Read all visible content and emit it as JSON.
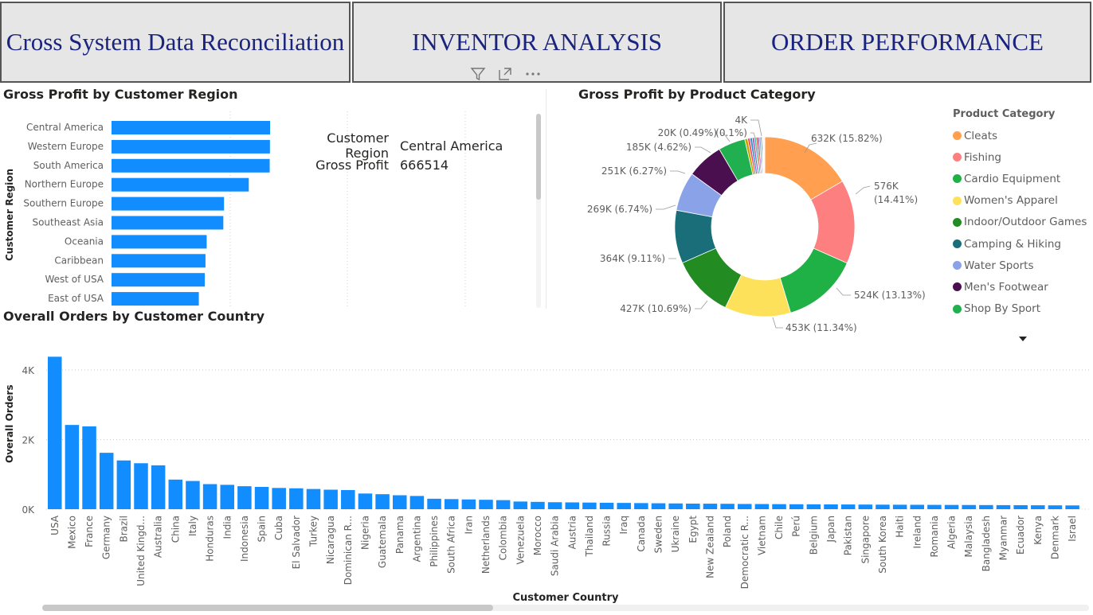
{
  "nav": {
    "btn1": "Cross System Data Reconciliation",
    "btn2": "INVENTOR ANALYSIS",
    "btn3": "ORDER PERFORMANCE"
  },
  "icons": [
    "filter-icon",
    "focus-mode-icon",
    "more-options-icon"
  ],
  "region_chart": {
    "title": "Gross Profit by Customer Region",
    "ylabel": "Customer Region",
    "tooltip": {
      "k1": "Customer Region",
      "v1": "Central America",
      "k2": "Gross Profit",
      "v2": "666514"
    }
  },
  "pie_chart": {
    "title": "Gross Profit by Product Category",
    "legend_title": "Product Category"
  },
  "country_chart": {
    "title": "Overall Orders by Customer Country",
    "xlabel": "Customer Country",
    "ylabel": "Overall Orders"
  },
  "chart_data": [
    {
      "type": "bar",
      "orientation": "horizontal",
      "title": "Gross Profit by Customer Region",
      "ylabel": "Customer Region",
      "categories": [
        "Central America",
        "Western Europe",
        "South America",
        "Northern Europe",
        "Southern Europe",
        "Southeast Asia",
        "Oceania",
        "Caribbean",
        "West of USA",
        "East of USA"
      ],
      "values": [
        666514,
        666000,
        665000,
        577000,
        473000,
        470000,
        400000,
        395000,
        392000,
        367000
      ],
      "grid": true
    },
    {
      "type": "pie",
      "title": "Gross Profit by Product Category",
      "legend": "right",
      "slices": [
        {
          "name": "Cleats",
          "value": 632,
          "label": "632K (15.82%)",
          "color": "#ff9f4f"
        },
        {
          "name": "Fishing",
          "value": 576,
          "label": "576K (14.41%)",
          "color": "#fd7f7f"
        },
        {
          "name": "Cardio Equipment",
          "value": 524,
          "label": "524K (13.13%)",
          "color": "#1fb046"
        },
        {
          "name": "Women's Apparel",
          "value": 453,
          "label": "453K (11.34%)",
          "color": "#fde15b"
        },
        {
          "name": "Indoor/Outdoor Games",
          "value": 427,
          "label": "427K (10.69%)",
          "color": "#228b22"
        },
        {
          "name": "Camping & Hiking",
          "value": 364,
          "label": "364K (9.11%)",
          "color": "#1a6e7a"
        },
        {
          "name": "Water Sports",
          "value": 269,
          "label": "269K (6.74%)",
          "color": "#8aa3e8"
        },
        {
          "name": "Men's Footwear",
          "value": 251,
          "label": "251K (6.27%)",
          "color": "#4a0f4f"
        },
        {
          "name": "Shop By Sport",
          "value": 185,
          "label": "185K (4.62%)",
          "color": "#20b050"
        },
        {
          "name": "",
          "value": 20,
          "label": "20K (0.49%)",
          "color": "#c9a400"
        },
        {
          "name": "",
          "value": 16,
          "label": "",
          "color": "#e8475a"
        },
        {
          "name": "",
          "value": 16,
          "label": "",
          "color": "#2c8ed6"
        },
        {
          "name": "",
          "value": 14,
          "label": "",
          "color": "#a64ca6"
        },
        {
          "name": "",
          "value": 12,
          "label": "",
          "color": "#32b8a6"
        },
        {
          "name": "",
          "value": 12,
          "label": "",
          "color": "#d64a2c"
        },
        {
          "name": "",
          "value": 10,
          "label": "",
          "color": "#6b3fa0"
        },
        {
          "name": "",
          "value": 10,
          "label": "",
          "color": "#889cc4"
        },
        {
          "name": "",
          "value": 8,
          "label": "",
          "color": "#2a5f7a"
        },
        {
          "name": "",
          "value": 6,
          "label": "",
          "color": "#c06080"
        },
        {
          "name": "",
          "value": 5,
          "label": "",
          "color": "#7a5a2e"
        },
        {
          "name": "",
          "value": 4,
          "label": "(0.1%)",
          "color": "#555577"
        },
        {
          "name": "",
          "value": 4,
          "label": "4K",
          "color": "#8888aa"
        }
      ]
    },
    {
      "type": "bar",
      "title": "Overall Orders by Customer Country",
      "xlabel": "Customer Country",
      "ylabel": "Overall Orders",
      "yticks": [
        "0K",
        "2K",
        "4K"
      ],
      "ylim": [
        0,
        4600
      ],
      "grid": true,
      "categories": [
        "USA",
        "Mexico",
        "France",
        "Germany",
        "Brazil",
        "United Kingd...",
        "Australia",
        "China",
        "Italy",
        "Honduras",
        "India",
        "Indonesia",
        "Spain",
        "Cuba",
        "El Salvador",
        "Turkey",
        "Nicaragua",
        "Dominican R...",
        "Nigeria",
        "Guatemala",
        "Panama",
        "Argentina",
        "Philippines",
        "South Africa",
        "Iran",
        "Netherlands",
        "Colombia",
        "Venezuela",
        "Morocco",
        "Saudi Arabia",
        "Austria",
        "Thailand",
        "Russia",
        "Iraq",
        "Canada",
        "Sweden",
        "Ukraine",
        "Egypt",
        "New Zealand",
        "Poland",
        "Democratic R...",
        "Vietnam",
        "Chile",
        "Perú",
        "Belgium",
        "Japan",
        "Pakistan",
        "Singapore",
        "South Korea",
        "Haiti",
        "Ireland",
        "Romania",
        "Algeria",
        "Malaysia",
        "Bangladesh",
        "Myanmar",
        "Ecuador",
        "Kenya",
        "Denmark",
        "Israel"
      ],
      "values": [
        4380,
        2420,
        2380,
        1620,
        1400,
        1320,
        1260,
        850,
        810,
        720,
        700,
        660,
        640,
        610,
        600,
        580,
        560,
        550,
        450,
        430,
        400,
        380,
        300,
        290,
        280,
        270,
        260,
        220,
        210,
        200,
        195,
        190,
        185,
        180,
        175,
        170,
        165,
        160,
        158,
        155,
        150,
        148,
        145,
        142,
        140,
        138,
        135,
        133,
        130,
        128,
        126,
        124,
        122,
        120,
        118,
        116,
        114,
        112,
        110,
        108
      ]
    }
  ]
}
